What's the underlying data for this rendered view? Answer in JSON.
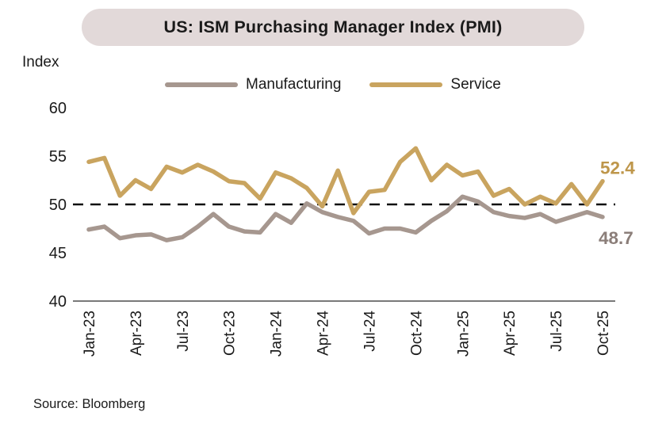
{
  "title": "US: ISM Purchasing Manager Index (PMI)",
  "title_pill_color": "#E2D9D9",
  "axis_unit_label": "Index",
  "legend": [
    {
      "label": "Manufacturing",
      "color": "#A6978F"
    },
    {
      "label": "Service",
      "color": "#C9A45F"
    }
  ],
  "end_labels": {
    "service": {
      "text": "52.4",
      "color": "#BE964A"
    },
    "manufacturing": {
      "text": "48.7",
      "color": "#8B7E79"
    }
  },
  "source": "Source: Bloomberg",
  "colors": {
    "text": "#1a1a1a",
    "axis_line": "#4d4d4d",
    "reference_line": "#111111"
  },
  "chart_data": {
    "type": "line",
    "x": [
      "Jan-23",
      "Feb-23",
      "Mar-23",
      "Apr-23",
      "May-23",
      "Jun-23",
      "Jul-23",
      "Aug-23",
      "Sep-23",
      "Oct-23",
      "Nov-23",
      "Dec-23",
      "Jan-24",
      "Feb-24",
      "Mar-24",
      "Apr-24",
      "May-24",
      "Jun-24",
      "Jul-24",
      "Aug-24",
      "Sep-24",
      "Oct-24",
      "Nov-24",
      "Dec-24",
      "Jan-25",
      "Feb-25",
      "Mar-25",
      "Apr-25",
      "May-25",
      "Jun-25",
      "Jul-25",
      "Aug-25",
      "Sep-25",
      "Oct-25"
    ],
    "x_tick_labels": [
      "Jan-23",
      "Apr-23",
      "Jul-23",
      "Oct-23",
      "Jan-24",
      "Apr-24",
      "Jul-24",
      "Oct-24",
      "Jan-25",
      "Apr-25",
      "Jul-25",
      "Oct-25"
    ],
    "x_tick_every": 3,
    "series": [
      {
        "name": "Manufacturing",
        "color": "#A6978F",
        "values": [
          47.4,
          47.7,
          46.5,
          46.8,
          46.9,
          46.3,
          46.6,
          47.7,
          49.0,
          47.7,
          47.2,
          47.1,
          49.0,
          48.1,
          50.1,
          49.2,
          48.7,
          48.3,
          47.0,
          47.5,
          47.5,
          47.1,
          48.3,
          49.3,
          50.8,
          50.3,
          49.2,
          48.8,
          48.6,
          49.0,
          48.2,
          48.7,
          49.2,
          48.7
        ]
      },
      {
        "name": "Service",
        "color": "#C9A45F",
        "values": [
          54.4,
          54.8,
          50.9,
          52.5,
          51.6,
          53.9,
          53.3,
          54.1,
          53.4,
          52.4,
          52.2,
          50.6,
          53.3,
          52.7,
          51.7,
          49.8,
          53.5,
          49.1,
          51.3,
          51.5,
          54.4,
          55.8,
          52.5,
          54.1,
          53.0,
          53.4,
          50.9,
          51.6,
          50.0,
          50.8,
          50.1,
          52.1,
          50.0,
          52.4
        ]
      }
    ],
    "title": "US: ISM Purchasing Manager Index (PMI)",
    "xlabel": "",
    "ylabel": "Index",
    "ylim": [
      40,
      60
    ],
    "yticks": [
      40,
      45,
      50,
      55,
      60
    ],
    "reference_line": 50,
    "grid": false,
    "legend_position": "top"
  }
}
